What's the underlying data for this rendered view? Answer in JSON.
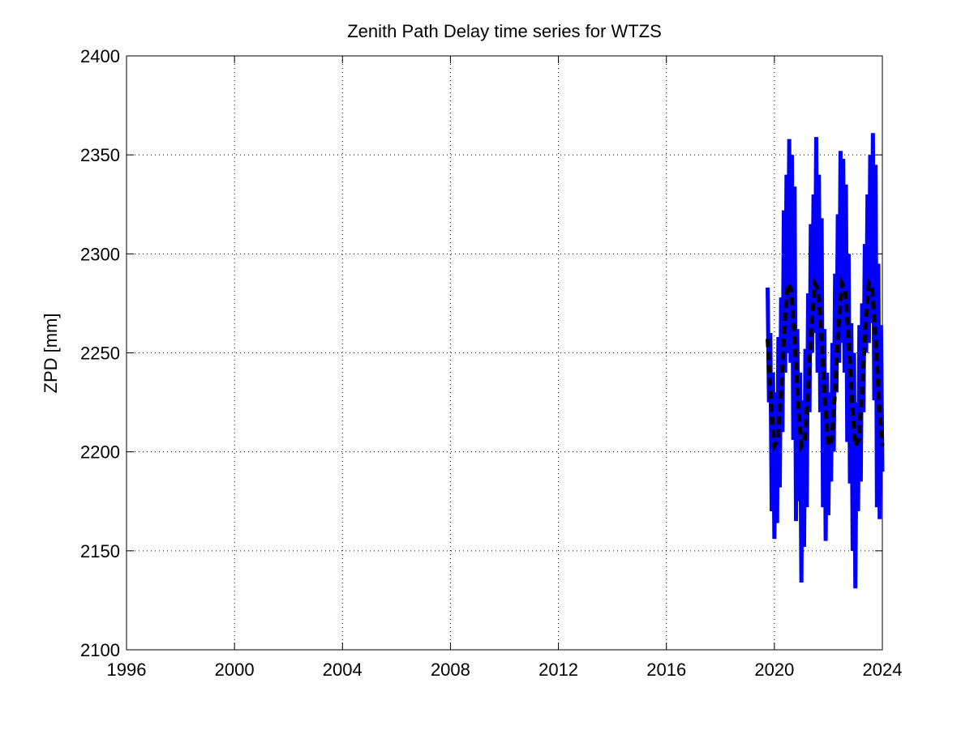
{
  "chart_data": {
    "type": "line",
    "title": "Zenith Path Delay time series for WTZS",
    "y_label": "ZPD [mm]",
    "xlim": [
      1996,
      2024
    ],
    "xticks": [
      1996,
      2000,
      2004,
      2008,
      2012,
      2016,
      2020,
      2024
    ],
    "ylim": [
      2100,
      2400
    ],
    "yticks": [
      2100,
      2150,
      2200,
      2250,
      2300,
      2350,
      2400
    ],
    "grid": true,
    "series": [
      {
        "color": "#0000ff",
        "style": "solid",
        "x": [
          2019.75,
          2019.8,
          2019.85,
          2019.9,
          2019.95,
          2020.0,
          2020.05,
          2020.1,
          2020.15,
          2020.2,
          2020.25,
          2020.3,
          2020.35,
          2020.4,
          2020.45,
          2020.5,
          2020.55,
          2020.6,
          2020.65,
          2020.7,
          2020.75,
          2020.8,
          2020.85,
          2020.9,
          2020.95,
          2021.0,
          2021.05,
          2021.1,
          2021.15,
          2021.2,
          2021.25,
          2021.3,
          2021.35,
          2021.4,
          2021.45,
          2021.5,
          2021.55,
          2021.6,
          2021.65,
          2021.7,
          2021.75,
          2021.8,
          2021.85,
          2021.9,
          2021.95,
          2022.0,
          2022.05,
          2022.1,
          2022.15,
          2022.2,
          2022.25,
          2022.3,
          2022.35,
          2022.4,
          2022.45,
          2022.5,
          2022.55,
          2022.6,
          2022.65,
          2022.7,
          2022.75,
          2022.8,
          2022.85,
          2022.9,
          2022.95,
          2023.0,
          2023.05,
          2023.1,
          2023.15,
          2023.2,
          2023.25,
          2023.3,
          2023.35,
          2023.4,
          2023.45,
          2023.5,
          2023.55,
          2023.6,
          2023.65,
          2023.7,
          2023.75,
          2023.8,
          2023.85,
          2023.9,
          2023.95,
          2024.0
        ],
        "values": [
          2283,
          2225,
          2260,
          2170,
          2240,
          2156,
          2230,
          2164,
          2258,
          2182,
          2278,
          2210,
          2322,
          2240,
          2340,
          2250,
          2358,
          2245,
          2350,
          2206,
          2334,
          2165,
          2262,
          2175,
          2240,
          2134,
          2226,
          2152,
          2252,
          2172,
          2280,
          2220,
          2315,
          2250,
          2330,
          2260,
          2359,
          2240,
          2340,
          2220,
          2318,
          2172,
          2262,
          2155,
          2240,
          2168,
          2230,
          2185,
          2255,
          2200,
          2290,
          2230,
          2320,
          2245,
          2352,
          2255,
          2348,
          2240,
          2335,
          2205,
          2300,
          2184,
          2265,
          2150,
          2250,
          2131,
          2225,
          2170,
          2264,
          2185,
          2275,
          2220,
          2305,
          2250,
          2330,
          2255,
          2350,
          2265,
          2361,
          2226,
          2345,
          2172,
          2295,
          2166,
          2264,
          2190
        ]
      },
      {
        "color": "#000000",
        "style": "dashed",
        "x": [
          2019.75,
          2019.875,
          2020.0,
          2020.125,
          2020.25,
          2020.375,
          2020.5,
          2020.625,
          2020.75,
          2020.875,
          2021.0,
          2021.125,
          2021.25,
          2021.375,
          2021.5,
          2021.625,
          2021.75,
          2021.875,
          2022.0,
          2022.125,
          2022.25,
          2022.375,
          2022.5,
          2022.625,
          2022.75,
          2022.875,
          2023.0,
          2023.125,
          2023.25,
          2023.375,
          2023.5,
          2023.625,
          2023.75,
          2023.875,
          2024.0
        ],
        "values": [
          2257,
          2225,
          2203,
          2206,
          2231,
          2264,
          2285,
          2282,
          2257,
          2225,
          2203,
          2206,
          2231,
          2264,
          2285,
          2282,
          2257,
          2225,
          2203,
          2206,
          2231,
          2264,
          2285,
          2282,
          2257,
          2225,
          2203,
          2206,
          2231,
          2264,
          2285,
          2282,
          2257,
          2225,
          2203
        ]
      }
    ]
  }
}
